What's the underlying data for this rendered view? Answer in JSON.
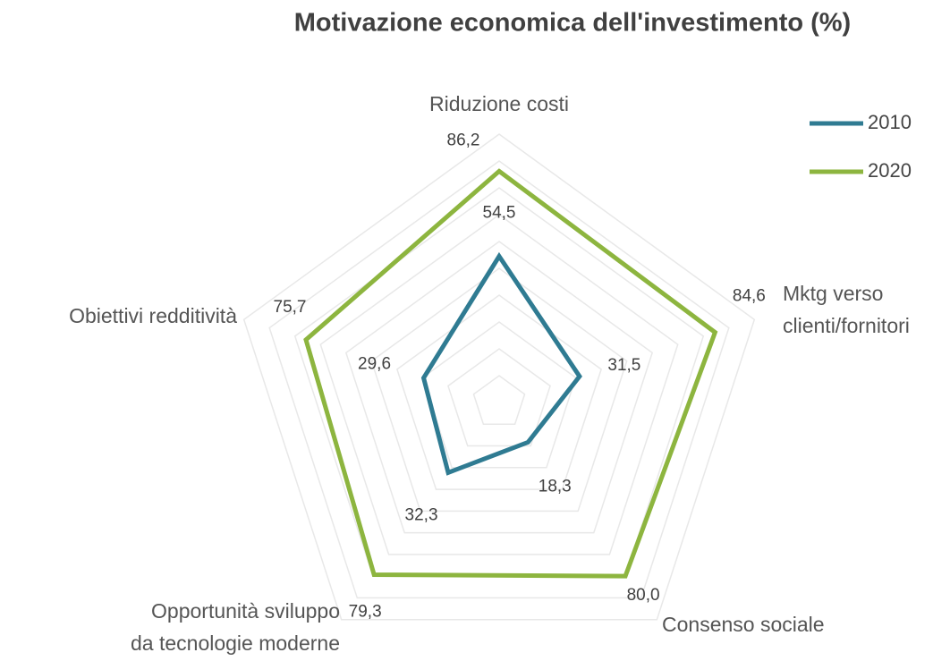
{
  "chart_data": {
    "type": "radar",
    "title": "Motivazione economica dell'investimento (%)",
    "categories": [
      [
        "Riduzione costi"
      ],
      [
        "Mktg verso",
        "clienti/fornitori"
      ],
      [
        "Consenso sociale"
      ],
      [
        "Opportunità sviluppo",
        "da tecnologie moderne"
      ],
      [
        "Obiettivi redditività"
      ]
    ],
    "series": [
      {
        "name": "2010",
        "color": "#2f7b92",
        "values": [
          54.5,
          31.5,
          18.3,
          32.3,
          29.6
        ],
        "value_labels": [
          "54,5",
          "31,5",
          "18,3",
          "32,3",
          "29,6"
        ]
      },
      {
        "name": "2020",
        "color": "#8db53f",
        "values": [
          86.2,
          84.6,
          80.0,
          79.3,
          75.7
        ],
        "value_labels": [
          "86,2",
          "84,6",
          "80,0",
          "79,3",
          "75,7"
        ]
      }
    ],
    "rlim": [
      0,
      100
    ],
    "rticks": [
      10,
      20,
      30,
      40,
      50,
      60,
      70,
      80,
      90,
      100
    ],
    "grid": true,
    "legend": "top-right"
  }
}
